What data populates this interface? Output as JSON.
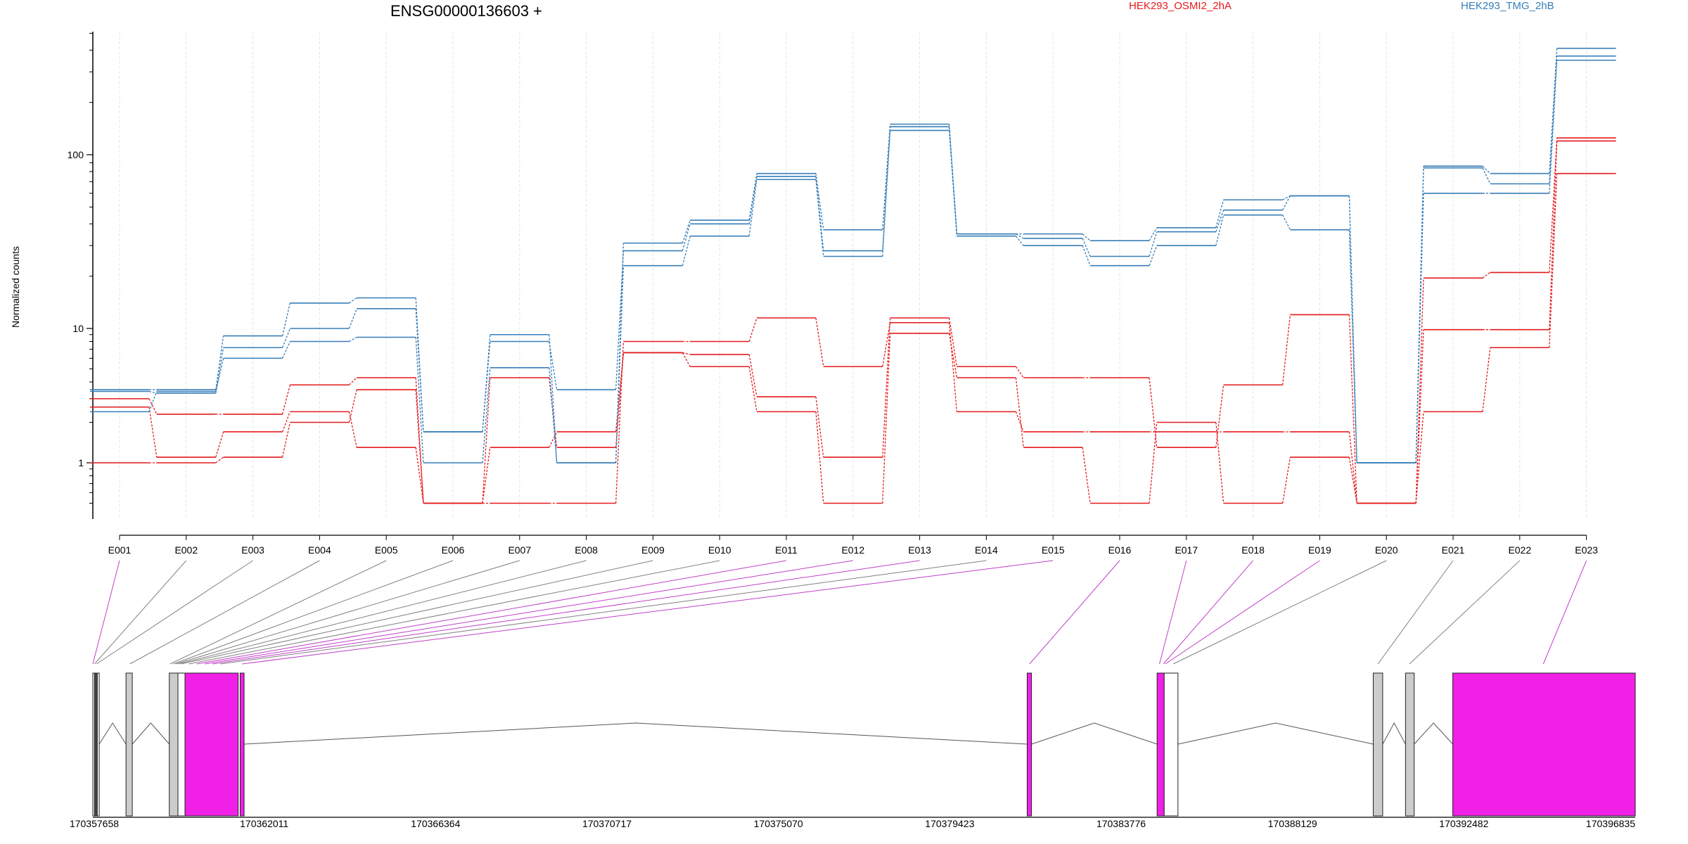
{
  "chart_data": {
    "type": "line",
    "title": "ENSG00000136603 +",
    "ylabel": "Normalized counts",
    "yscale": "log",
    "ylim": [
      0.48,
      600
    ],
    "yticks": [
      "1",
      "10",
      "100"
    ],
    "legend_position": "top",
    "categories": [
      "E001",
      "E002",
      "E003",
      "E004",
      "E005",
      "E006",
      "E007",
      "E008",
      "E009",
      "E010",
      "E011",
      "E012",
      "E013",
      "E014",
      "E015",
      "E016",
      "E017",
      "E018",
      "E019",
      "E020",
      "E021",
      "E022",
      "E023"
    ],
    "series": [
      {
        "name": "HEK293_OSMI2_2hA",
        "group": "HEK293_OSMI2_2hA",
        "color": "#e41a1c",
        "values": [
          3.0,
          2.3,
          2.3,
          3.8,
          4.3,
          0.5,
          4.3,
          1.3,
          6.6,
          6.4,
          3.1,
          1.1,
          11.5,
          5.2,
          4.3,
          4.3,
          1.3,
          3.8,
          12.0,
          0.5,
          19.5,
          21.0,
          125.0
        ]
      },
      {
        "name": "HEK293_OSMI2_2hA",
        "group": "HEK293_OSMI2_2hA",
        "color": "#e41a1c",
        "values": [
          2.6,
          1.1,
          1.7,
          2.4,
          1.3,
          0.5,
          0.5,
          0.5,
          8.0,
          8.0,
          11.5,
          5.2,
          10.8,
          2.4,
          1.7,
          1.7,
          1.7,
          1.7,
          1.7,
          0.5,
          9.8,
          9.8,
          120.0
        ]
      },
      {
        "name": "HEK293_OSMI2_2hA",
        "group": "HEK293_OSMI2_2hA",
        "color": "#e41a1c",
        "values": [
          1.0,
          1.0,
          1.1,
          2.0,
          3.5,
          0.5,
          1.3,
          1.7,
          6.6,
          5.2,
          2.4,
          0.5,
          9.2,
          4.3,
          1.3,
          0.5,
          2.0,
          0.5,
          1.1,
          0.5,
          2.4,
          7.2,
          78.0
        ]
      },
      {
        "name": "HEK293_TMG_2hB",
        "group": "HEK293_TMG_2hB",
        "color": "#377eb8",
        "values": [
          3.5,
          3.5,
          8.8,
          14.0,
          15.0,
          1.7,
          9.0,
          1.0,
          31.0,
          42.0,
          78.0,
          37.0,
          150.0,
          35.0,
          35.0,
          32.0,
          38.0,
          55.0,
          58.0,
          1.0,
          86.0,
          78.0,
          410.0
        ]
      },
      {
        "name": "HEK293_TMG_2hB",
        "group": "HEK293_TMG_2hB",
        "color": "#377eb8",
        "values": [
          3.4,
          3.3,
          7.2,
          10.0,
          13.0,
          1.7,
          8.0,
          3.5,
          28.0,
          40.0,
          75.0,
          28.0,
          145.0,
          35.0,
          33.0,
          26.0,
          36.0,
          48.0,
          58.0,
          1.0,
          84.0,
          68.0,
          370.0
        ]
      },
      {
        "name": "HEK293_TMG_2hB",
        "group": "HEK293_TMG_2hB",
        "color": "#377eb8",
        "values": [
          2.4,
          3.4,
          6.0,
          8.0,
          8.6,
          1.0,
          5.1,
          1.0,
          23.0,
          34.0,
          72.0,
          26.0,
          138.0,
          34.0,
          30.0,
          23.0,
          30.0,
          45.0,
          37.0,
          1.0,
          60.0,
          60.0,
          350.0
        ]
      }
    ],
    "legend": [
      {
        "label": "HEK293_OSMI2_2hA",
        "color": "#e41a1c"
      },
      {
        "label": "HEK293_TMG_2hB",
        "color": "#377eb8"
      }
    ],
    "gene_model": {
      "coord_ticks": [
        "170357658",
        "170362011",
        "170366364",
        "170370717",
        "170375070",
        "170379423",
        "170383776",
        "170388129",
        "170392482",
        "170396835"
      ],
      "coord_range": [
        170357658,
        170396835
      ],
      "exon_blocks": [
        {
          "start": 170357658,
          "end": 170357820,
          "fill": "#ffffff"
        },
        {
          "start": 170357700,
          "end": 170357760,
          "fill": "#444444"
        },
        {
          "start": 170358500,
          "end": 170358660,
          "fill": "#cccccc"
        },
        {
          "start": 170359600,
          "end": 170359820,
          "fill": "#cccccc"
        },
        {
          "start": 170359820,
          "end": 170360000,
          "fill": "#ffffff"
        },
        {
          "start": 170360000,
          "end": 170361350,
          "fill": "#f020e6"
        },
        {
          "start": 170361400,
          "end": 170361500,
          "fill": "#f020e6"
        },
        {
          "start": 170381390,
          "end": 170381500,
          "fill": "#f020e6"
        },
        {
          "start": 170384690,
          "end": 170384870,
          "fill": "#f020e6"
        },
        {
          "start": 170384870,
          "end": 170385220,
          "fill": "#ffffff"
        },
        {
          "start": 170390180,
          "end": 170390420,
          "fill": "#cccccc"
        },
        {
          "start": 170391000,
          "end": 170391220,
          "fill": "#cccccc"
        },
        {
          "start": 170392200,
          "end": 170396835,
          "fill": "#f020e6"
        }
      ],
      "introns": [
        {
          "start": 170357820,
          "end": 170358500
        },
        {
          "start": 170358660,
          "end": 170359600
        },
        {
          "start": 170361500,
          "end": 170381390
        },
        {
          "start": 170381500,
          "end": 170384690
        },
        {
          "start": 170385220,
          "end": 170390180
        },
        {
          "start": 170390420,
          "end": 170391000
        },
        {
          "start": 170391220,
          "end": 170392200
        }
      ],
      "exon_links": [
        {
          "exon": "E001",
          "coord": 170357658,
          "highlight": true
        },
        {
          "exon": "E002",
          "coord": 170357700,
          "highlight": false
        },
        {
          "exon": "E003",
          "coord": 170357750,
          "highlight": false
        },
        {
          "exon": "E004",
          "coord": 170358600,
          "highlight": false
        },
        {
          "exon": "E005",
          "coord": 170359620,
          "highlight": false
        },
        {
          "exon": "E006",
          "coord": 170359700,
          "highlight": false
        },
        {
          "exon": "E007",
          "coord": 170359760,
          "highlight": false
        },
        {
          "exon": "E008",
          "coord": 170359830,
          "highlight": false
        },
        {
          "exon": "E009",
          "coord": 170359900,
          "highlight": false
        },
        {
          "exon": "E010",
          "coord": 170360100,
          "highlight": false
        },
        {
          "exon": "E011",
          "coord": 170360300,
          "highlight": true
        },
        {
          "exon": "E012",
          "coord": 170360500,
          "highlight": true
        },
        {
          "exon": "E013",
          "coord": 170360700,
          "highlight": true
        },
        {
          "exon": "E014",
          "coord": 170360900,
          "highlight": false
        },
        {
          "exon": "E015",
          "coord": 170361450,
          "highlight": true
        },
        {
          "exon": "E016",
          "coord": 170381450,
          "highlight": true
        },
        {
          "exon": "E017",
          "coord": 170384750,
          "highlight": true
        },
        {
          "exon": "E018",
          "coord": 170384850,
          "highlight": true
        },
        {
          "exon": "E019",
          "coord": 170384900,
          "highlight": true
        },
        {
          "exon": "E020",
          "coord": 170385100,
          "highlight": false
        },
        {
          "exon": "E021",
          "coord": 170390300,
          "highlight": false
        },
        {
          "exon": "E022",
          "coord": 170391100,
          "highlight": false
        },
        {
          "exon": "E023",
          "coord": 170394500,
          "highlight": true
        }
      ]
    }
  }
}
